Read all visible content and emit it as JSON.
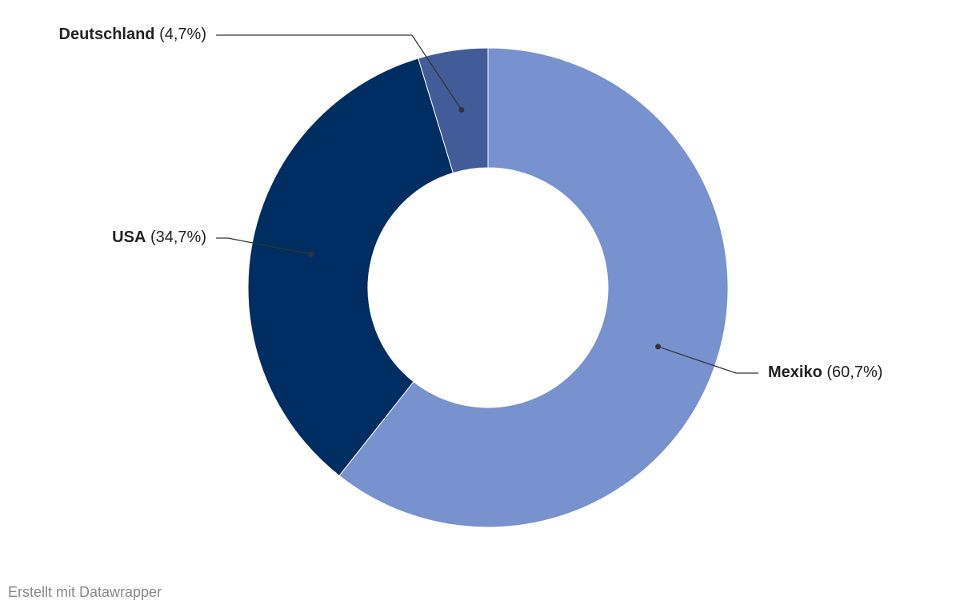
{
  "chart_data": {
    "type": "donut",
    "categories": [
      "Mexiko",
      "USA",
      "Deutschland"
    ],
    "values": [
      60.7,
      34.7,
      4.7
    ],
    "value_labels": [
      "(60,7%)",
      "(34,7%)",
      "(4,7%)"
    ],
    "colors": [
      "#7892cf",
      "#002e62",
      "#425c9a"
    ]
  },
  "footer": "Erstellt mit Datawrapper"
}
